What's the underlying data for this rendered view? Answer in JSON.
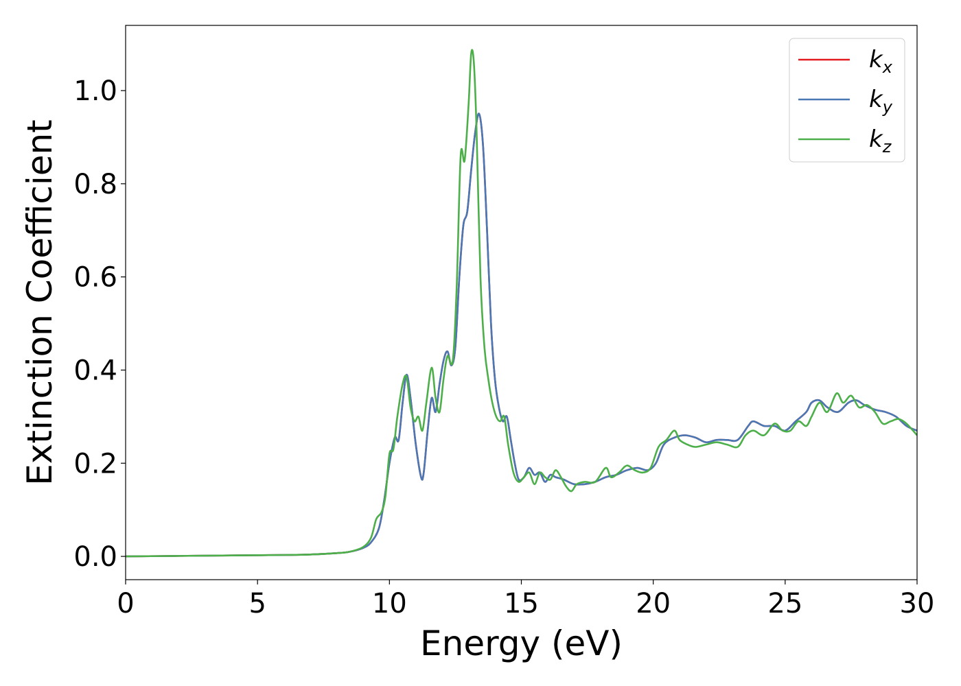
{
  "chart_data": {
    "type": "line",
    "xlabel": "Energy (eV)",
    "ylabel": "Extinction Coefficient",
    "xlim": [
      0,
      30
    ],
    "ylim": [
      -0.05,
      1.14
    ],
    "xticks": [
      0,
      5,
      10,
      15,
      20,
      25,
      30
    ],
    "xtick_labels": [
      "0",
      "5",
      "10",
      "15",
      "20",
      "25",
      "30"
    ],
    "yticks": [
      0.0,
      0.2,
      0.4,
      0.6,
      0.8,
      1.0
    ],
    "ytick_labels": [
      "0.0",
      "0.2",
      "0.4",
      "0.6",
      "0.8",
      "1.0"
    ],
    "grid": false,
    "legend_position": "top-right",
    "series": [
      {
        "name": "kx",
        "label_main": "k",
        "label_sub": "x",
        "color": "#e41a1c",
        "x": [
          0,
          2,
          4,
          6,
          7,
          8,
          8.5,
          9,
          9.3,
          9.6,
          9.8,
          10.0,
          10.2,
          10.35,
          10.5,
          10.65,
          10.8,
          11.0,
          11.2,
          11.3,
          11.45,
          11.6,
          11.75,
          11.9,
          12.05,
          12.2,
          12.35,
          12.5,
          12.65,
          12.8,
          12.95,
          13.1,
          13.25,
          13.4,
          13.55,
          13.7,
          13.85,
          14.0,
          14.15,
          14.3,
          14.45,
          14.6,
          14.75,
          14.9,
          15.1,
          15.3,
          15.5,
          15.7,
          15.9,
          16.1,
          16.3,
          16.6,
          17.0,
          17.4,
          17.8,
          18.2,
          18.6,
          19.0,
          19.4,
          19.8,
          20.1,
          20.4,
          20.8,
          21.2,
          21.6,
          22.0,
          22.4,
          22.8,
          23.2,
          23.6,
          23.8,
          24.2,
          24.6,
          25.0,
          25.4,
          25.8,
          26.0,
          26.3,
          26.6,
          27.0,
          27.4,
          27.7,
          28.0,
          28.4,
          28.8,
          29.2,
          29.6,
          30.0
        ],
        "y": [
          0.0,
          0.001,
          0.002,
          0.003,
          0.004,
          0.007,
          0.01,
          0.018,
          0.03,
          0.06,
          0.12,
          0.2,
          0.255,
          0.25,
          0.33,
          0.39,
          0.34,
          0.24,
          0.17,
          0.18,
          0.27,
          0.34,
          0.31,
          0.37,
          0.42,
          0.44,
          0.41,
          0.45,
          0.6,
          0.71,
          0.74,
          0.83,
          0.91,
          0.95,
          0.88,
          0.7,
          0.5,
          0.38,
          0.32,
          0.29,
          0.3,
          0.25,
          0.2,
          0.165,
          0.17,
          0.19,
          0.175,
          0.18,
          0.16,
          0.175,
          0.17,
          0.165,
          0.155,
          0.155,
          0.16,
          0.17,
          0.175,
          0.185,
          0.19,
          0.185,
          0.2,
          0.24,
          0.255,
          0.26,
          0.255,
          0.245,
          0.25,
          0.25,
          0.25,
          0.28,
          0.29,
          0.28,
          0.28,
          0.27,
          0.29,
          0.31,
          0.33,
          0.335,
          0.32,
          0.31,
          0.33,
          0.335,
          0.325,
          0.315,
          0.31,
          0.3,
          0.28,
          0.27
        ]
      },
      {
        "name": "ky",
        "label_main": "k",
        "label_sub": "y",
        "color": "#4a78b5",
        "x": [
          0,
          2,
          4,
          6,
          7,
          8,
          8.5,
          9,
          9.3,
          9.6,
          9.8,
          10.0,
          10.2,
          10.35,
          10.5,
          10.65,
          10.8,
          11.0,
          11.2,
          11.3,
          11.45,
          11.6,
          11.75,
          11.9,
          12.05,
          12.2,
          12.35,
          12.5,
          12.65,
          12.8,
          12.95,
          13.1,
          13.25,
          13.4,
          13.55,
          13.7,
          13.85,
          14.0,
          14.15,
          14.3,
          14.45,
          14.6,
          14.75,
          14.9,
          15.1,
          15.3,
          15.5,
          15.7,
          15.9,
          16.1,
          16.3,
          16.6,
          17.0,
          17.4,
          17.8,
          18.2,
          18.6,
          19.0,
          19.4,
          19.8,
          20.1,
          20.4,
          20.8,
          21.2,
          21.6,
          22.0,
          22.4,
          22.8,
          23.2,
          23.6,
          23.8,
          24.2,
          24.6,
          25.0,
          25.4,
          25.8,
          26.0,
          26.3,
          26.6,
          27.0,
          27.4,
          27.7,
          28.0,
          28.4,
          28.8,
          29.2,
          29.6,
          30.0
        ],
        "y": [
          0.0,
          0.001,
          0.002,
          0.003,
          0.004,
          0.007,
          0.01,
          0.018,
          0.03,
          0.06,
          0.12,
          0.2,
          0.255,
          0.25,
          0.33,
          0.39,
          0.34,
          0.24,
          0.17,
          0.18,
          0.27,
          0.34,
          0.31,
          0.37,
          0.42,
          0.44,
          0.41,
          0.45,
          0.6,
          0.71,
          0.74,
          0.83,
          0.91,
          0.95,
          0.88,
          0.7,
          0.5,
          0.38,
          0.32,
          0.29,
          0.3,
          0.25,
          0.2,
          0.165,
          0.17,
          0.19,
          0.175,
          0.18,
          0.16,
          0.175,
          0.17,
          0.165,
          0.155,
          0.155,
          0.16,
          0.17,
          0.175,
          0.185,
          0.19,
          0.185,
          0.2,
          0.24,
          0.255,
          0.26,
          0.255,
          0.245,
          0.25,
          0.25,
          0.25,
          0.28,
          0.29,
          0.28,
          0.28,
          0.27,
          0.29,
          0.31,
          0.33,
          0.335,
          0.32,
          0.31,
          0.33,
          0.335,
          0.325,
          0.315,
          0.31,
          0.3,
          0.28,
          0.27
        ]
      },
      {
        "name": "kz",
        "label_main": "k",
        "label_sub": "z",
        "color": "#4daf4a",
        "x": [
          0,
          2,
          4,
          6,
          7,
          8,
          8.5,
          9,
          9.3,
          9.5,
          9.7,
          9.85,
          10.0,
          10.15,
          10.3,
          10.5,
          10.65,
          10.8,
          10.95,
          11.1,
          11.25,
          11.4,
          11.6,
          11.75,
          11.9,
          12.05,
          12.2,
          12.4,
          12.55,
          12.7,
          12.85,
          13.0,
          13.1,
          13.2,
          13.3,
          13.45,
          13.6,
          13.75,
          13.9,
          14.05,
          14.2,
          14.35,
          14.5,
          14.7,
          14.9,
          15.1,
          15.3,
          15.5,
          15.7,
          15.9,
          16.1,
          16.3,
          16.5,
          16.7,
          16.9,
          17.1,
          17.4,
          17.8,
          18.2,
          18.4,
          18.7,
          19.0,
          19.3,
          19.6,
          19.9,
          20.2,
          20.5,
          20.8,
          21.0,
          21.3,
          21.6,
          22.0,
          22.4,
          22.8,
          23.2,
          23.5,
          23.8,
          24.2,
          24.6,
          24.9,
          25.2,
          25.5,
          25.8,
          26.0,
          26.3,
          26.6,
          26.95,
          27.2,
          27.5,
          27.8,
          28.1,
          28.4,
          28.7,
          29.0,
          29.3,
          29.6,
          30.0
        ],
        "y": [
          0.0,
          0.001,
          0.002,
          0.003,
          0.004,
          0.007,
          0.01,
          0.02,
          0.04,
          0.08,
          0.095,
          0.13,
          0.22,
          0.23,
          0.3,
          0.37,
          0.385,
          0.32,
          0.29,
          0.3,
          0.27,
          0.33,
          0.405,
          0.34,
          0.31,
          0.38,
          0.43,
          0.42,
          0.58,
          0.86,
          0.85,
          0.97,
          1.08,
          1.06,
          0.92,
          0.6,
          0.45,
          0.38,
          0.33,
          0.3,
          0.29,
          0.3,
          0.24,
          0.18,
          0.16,
          0.17,
          0.18,
          0.155,
          0.18,
          0.17,
          0.165,
          0.185,
          0.17,
          0.15,
          0.14,
          0.155,
          0.16,
          0.16,
          0.19,
          0.17,
          0.18,
          0.195,
          0.185,
          0.18,
          0.19,
          0.235,
          0.25,
          0.27,
          0.25,
          0.24,
          0.235,
          0.24,
          0.245,
          0.24,
          0.235,
          0.26,
          0.27,
          0.26,
          0.285,
          0.27,
          0.27,
          0.29,
          0.28,
          0.3,
          0.33,
          0.31,
          0.35,
          0.33,
          0.345,
          0.32,
          0.325,
          0.31,
          0.285,
          0.29,
          0.295,
          0.285,
          0.26
        ]
      }
    ]
  }
}
